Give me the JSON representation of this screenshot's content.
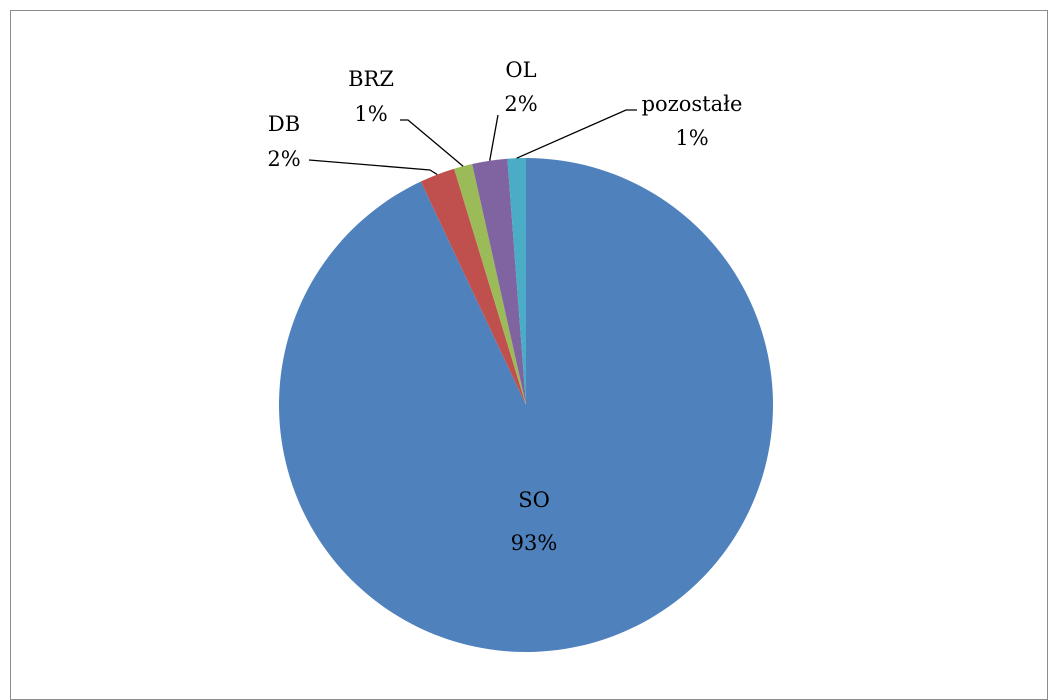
{
  "chart_data": {
    "type": "pie",
    "title": "",
    "slices": [
      {
        "label": "SO",
        "value": 93,
        "value_label": "93%",
        "color": "#4F81BD"
      },
      {
        "label": "DB",
        "value": 2.3,
        "value_label": "2%",
        "color": "#C0504D"
      },
      {
        "label": "BRZ",
        "value": 1.2,
        "value_label": "1%",
        "color": "#9BBB59"
      },
      {
        "label": "OL",
        "value": 2.3,
        "value_label": "2%",
        "color": "#8064A2"
      },
      {
        "label": "pozostałe",
        "value": 1.2,
        "value_label": "1%",
        "color": "#4BACC6"
      }
    ],
    "start_angle": "12 o'clock",
    "direction": "counterclockwise from SO",
    "legend": "none",
    "data_labels": "category and percentage",
    "leader_lines": true
  }
}
